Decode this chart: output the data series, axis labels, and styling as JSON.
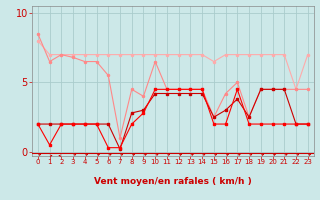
{
  "background_color": "#cce8e8",
  "grid_color": "#aacccc",
  "xlim": [
    -0.5,
    23.5
  ],
  "ylim": [
    -0.3,
    10.5
  ],
  "yticks": [
    0,
    5,
    10
  ],
  "xticks": [
    0,
    1,
    2,
    3,
    4,
    5,
    6,
    7,
    8,
    9,
    10,
    11,
    12,
    13,
    14,
    15,
    16,
    17,
    18,
    19,
    20,
    21,
    22,
    23
  ],
  "xlabel": "Vent moyen/en rafales ( km/h )",
  "xlabel_color": "#cc0000",
  "xlabel_fontsize": 6.5,
  "tick_color": "#cc0000",
  "ytick_fontsize": 7,
  "xtick_fontsize": 5,
  "line1_x": [
    0,
    1,
    2,
    3,
    4,
    5,
    6,
    7,
    8,
    9,
    10,
    11,
    12,
    13,
    14,
    15,
    16,
    17,
    18,
    19,
    20,
    21,
    22,
    23
  ],
  "line1_y": [
    8.0,
    7.0,
    7.0,
    7.0,
    7.0,
    7.0,
    7.0,
    7.0,
    7.0,
    7.0,
    7.0,
    7.0,
    7.0,
    7.0,
    7.0,
    6.5,
    7.0,
    7.0,
    7.0,
    7.0,
    7.0,
    7.0,
    4.5,
    7.0
  ],
  "line1_color": "#ffaaaa",
  "line1_markersize": 1.5,
  "line1_linewidth": 0.8,
  "line2_x": [
    0,
    1,
    2,
    3,
    4,
    5,
    6,
    7,
    8,
    9,
    10,
    11,
    12,
    13,
    14,
    15,
    16,
    17,
    18,
    19,
    20,
    21,
    22,
    23
  ],
  "line2_y": [
    8.5,
    6.5,
    7.0,
    6.8,
    6.5,
    6.5,
    5.5,
    1.0,
    4.5,
    4.0,
    6.5,
    4.5,
    4.5,
    4.5,
    4.5,
    2.5,
    4.2,
    5.0,
    2.5,
    4.5,
    4.5,
    4.5,
    4.5,
    4.5
  ],
  "line2_color": "#ff8888",
  "line2_markersize": 1.5,
  "line2_linewidth": 0.8,
  "line3_x": [
    0,
    1,
    2,
    3,
    4,
    5,
    6,
    7,
    8,
    9,
    10,
    11,
    12,
    13,
    14,
    15,
    16,
    17,
    18,
    19,
    20,
    21,
    22,
    23
  ],
  "line3_y": [
    2.0,
    2.0,
    2.0,
    2.0,
    2.0,
    2.0,
    2.0,
    0.2,
    2.8,
    3.0,
    4.2,
    4.2,
    4.2,
    4.2,
    4.2,
    2.5,
    3.0,
    3.8,
    2.5,
    4.5,
    4.5,
    4.5,
    2.0,
    2.0
  ],
  "line3_color": "#cc0000",
  "line3_markersize": 1.5,
  "line3_linewidth": 0.8,
  "line4_x": [
    0,
    1,
    2,
    3,
    4,
    5,
    6,
    7,
    8,
    9,
    10,
    11,
    12,
    13,
    14,
    15,
    16,
    17,
    18,
    19,
    20,
    21,
    22,
    23
  ],
  "line4_y": [
    2.0,
    0.5,
    2.0,
    2.0,
    2.0,
    2.0,
    0.3,
    0.3,
    2.0,
    2.8,
    4.5,
    4.5,
    4.5,
    4.5,
    4.5,
    2.0,
    2.0,
    4.5,
    2.0,
    2.0,
    2.0,
    2.0,
    2.0,
    2.0
  ],
  "line4_color": "#ff0000",
  "line4_markersize": 1.5,
  "line4_linewidth": 0.8,
  "spine_color": "#888888",
  "arrow_color": "#cc0000"
}
